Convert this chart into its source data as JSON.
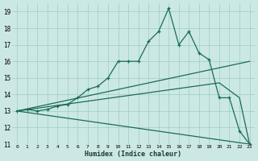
{
  "xlabel": "Humidex (Indice chaleur)",
  "bg_color": "#cce8e4",
  "grid_color": "#99cccc",
  "line_color": "#1a6b5a",
  "xlim": [
    -0.5,
    23.5
  ],
  "ylim": [
    11,
    19.5
  ],
  "yticks": [
    11,
    12,
    13,
    14,
    15,
    16,
    17,
    18,
    19
  ],
  "xticks": [
    0,
    1,
    2,
    3,
    4,
    5,
    6,
    7,
    8,
    9,
    10,
    11,
    12,
    13,
    14,
    15,
    16,
    17,
    18,
    19,
    20,
    21,
    22,
    23
  ],
  "series_main": {
    "x": [
      0,
      1,
      2,
      3,
      4,
      5,
      6,
      7,
      8,
      9,
      10,
      11,
      12,
      13,
      14,
      15,
      16,
      17,
      18,
      19,
      20,
      21,
      22,
      23
    ],
    "y": [
      13.0,
      13.1,
      13.0,
      13.1,
      13.3,
      13.4,
      13.8,
      14.3,
      14.5,
      15.0,
      16.0,
      16.0,
      16.0,
      17.2,
      17.8,
      19.2,
      17.0,
      17.8,
      16.5,
      16.1,
      13.8,
      13.8,
      11.8,
      11.0
    ]
  },
  "series_line1": {
    "x": [
      0,
      23
    ],
    "y": [
      13.0,
      16.0
    ]
  },
  "series_line2": {
    "x": [
      0,
      20,
      22,
      23
    ],
    "y": [
      13.0,
      14.7,
      13.8,
      11.0
    ]
  },
  "series_line3": {
    "x": [
      0,
      23
    ],
    "y": [
      13.0,
      11.0
    ]
  }
}
